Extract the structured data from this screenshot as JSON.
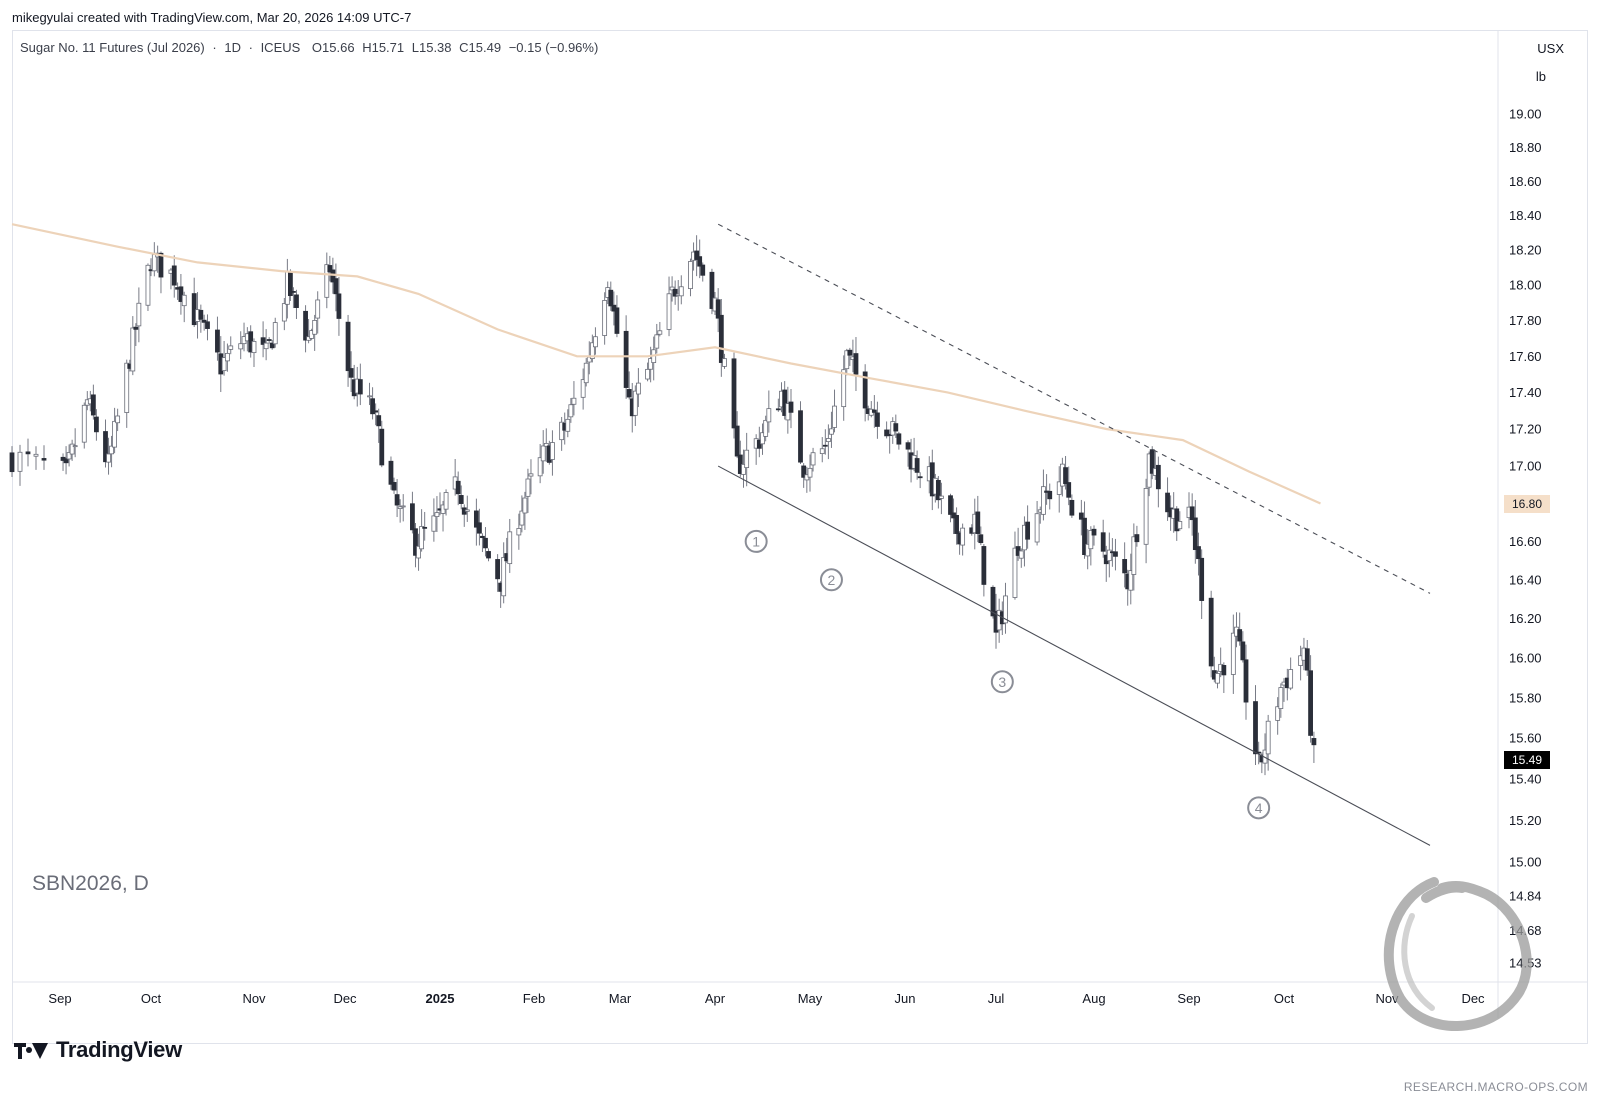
{
  "header": {
    "credit": "mikegyulai created with TradingView.com, Mar 20, 2026 14:09 UTC-7"
  },
  "legend": {
    "title": "Sugar No. 11 Futures (Jul 2026)",
    "interval": "1D",
    "exchange": "ICEUS",
    "open": "O15.66",
    "high": "H15.71",
    "low": "L15.38",
    "close": "C15.49",
    "change": "−0.15 (−0.96%)"
  },
  "axis": {
    "unit_top": "USX",
    "unit_bottom": "lb"
  },
  "symbol_watermark": "SBN2026, D",
  "branding": {
    "logo_text": "TradingView",
    "source_text": "RESEARCH.MACRO-OPS.COM"
  },
  "wave_labels": [
    "1",
    "2",
    "3",
    "4"
  ],
  "colors": {
    "down_candle": "#2a2e39",
    "up_candle": "#ffffff",
    "wick": "#787b86",
    "moving_average": "#edd3b9",
    "ma_label_bg": "#f5dfc9",
    "last_price_bg": "#000000"
  },
  "price_labels": {
    "ma_value": "16.80",
    "last_value": "15.49"
  },
  "chart_data": {
    "type": "candlestick",
    "x_ticks": [
      "Sep",
      "Oct",
      "Nov",
      "Dec",
      "2025",
      "Feb",
      "Mar",
      "Apr",
      "May",
      "Jun",
      "Jul",
      "Aug",
      "Sep",
      "Oct",
      "Nov",
      "Dec"
    ],
    "y_ticks": [
      "19.00",
      "18.80",
      "18.60",
      "18.40",
      "18.20",
      "18.00",
      "17.80",
      "17.60",
      "17.40",
      "17.20",
      "17.00",
      "16.80",
      "16.60",
      "16.40",
      "16.20",
      "16.00",
      "15.80",
      "15.60",
      "15.40",
      "15.20",
      "15.00",
      "14.84",
      "14.68",
      "14.53"
    ],
    "y_range": [
      14.45,
      19.25
    ],
    "grid": false,
    "scale": "log",
    "series": [
      {
        "name": "",
        "kind": "price",
        "path": [
          [
            "2024-08-26",
            17.05
          ],
          [
            "2024-09-03",
            16.95
          ],
          [
            "2024-09-10",
            17.35
          ],
          [
            "2024-09-17",
            17.0
          ],
          [
            "2024-09-24",
            17.6
          ],
          [
            "2024-10-01",
            18.15
          ],
          [
            "2024-10-08",
            18.05
          ],
          [
            "2024-10-15",
            17.8
          ],
          [
            "2024-10-22",
            17.55
          ],
          [
            "2024-10-29",
            17.7
          ],
          [
            "2024-11-05",
            17.6
          ],
          [
            "2024-11-12",
            18.0
          ],
          [
            "2024-11-19",
            17.7
          ],
          [
            "2024-11-26",
            18.1
          ],
          [
            "2024-12-03",
            17.45
          ],
          [
            "2024-12-10",
            17.3
          ],
          [
            "2024-12-17",
            16.8
          ],
          [
            "2024-12-24",
            16.6
          ],
          [
            "2024-12-31",
            16.7
          ],
          [
            "2025-01-07",
            16.9
          ],
          [
            "2025-01-14",
            16.6
          ],
          [
            "2025-01-21",
            16.4
          ],
          [
            "2025-01-28",
            16.8
          ],
          [
            "2025-02-04",
            17.05
          ],
          [
            "2025-02-11",
            17.2
          ],
          [
            "2025-02-18",
            17.55
          ],
          [
            "2025-02-25",
            18.05
          ],
          [
            "2025-03-04",
            17.3
          ],
          [
            "2025-03-11",
            17.55
          ],
          [
            "2025-03-18",
            17.95
          ],
          [
            "2025-03-25",
            18.2
          ],
          [
            "2025-04-01",
            17.9
          ],
          [
            "2025-04-08",
            17.0
          ],
          [
            "2025-04-15",
            17.15
          ],
          [
            "2025-04-22",
            17.4
          ],
          [
            "2025-04-29",
            17.0
          ],
          [
            "2025-05-06",
            17.1
          ],
          [
            "2025-05-13",
            17.6
          ],
          [
            "2025-05-20",
            17.35
          ],
          [
            "2025-05-27",
            17.2
          ],
          [
            "2025-06-03",
            17.05
          ],
          [
            "2025-06-10",
            16.9
          ],
          [
            "2025-06-17",
            16.65
          ],
          [
            "2025-06-24",
            16.7
          ],
          [
            "2025-07-01",
            16.1
          ],
          [
            "2025-07-08",
            16.6
          ],
          [
            "2025-07-15",
            16.8
          ],
          [
            "2025-07-22",
            16.95
          ],
          [
            "2025-07-29",
            16.6
          ],
          [
            "2025-08-05",
            16.55
          ],
          [
            "2025-08-12",
            16.4
          ],
          [
            "2025-08-19",
            17.05
          ],
          [
            "2025-08-26",
            16.75
          ],
          [
            "2025-09-02",
            16.7
          ],
          [
            "2025-09-09",
            15.9
          ],
          [
            "2025-09-16",
            16.1
          ],
          [
            "2025-09-23",
            15.45
          ],
          [
            "2025-09-30",
            15.85
          ],
          [
            "2025-10-07",
            16.05
          ],
          [
            "2025-10-10",
            15.49
          ]
        ]
      },
      {
        "name": "",
        "kind": "moving_average",
        "points": [
          [
            "2024-08-26",
            18.35
          ],
          [
            "2024-09-20",
            18.22
          ],
          [
            "2024-10-15",
            18.13
          ],
          [
            "2024-11-10",
            18.08
          ],
          [
            "2024-12-05",
            18.05
          ],
          [
            "2024-12-25",
            17.95
          ],
          [
            "2025-01-20",
            17.75
          ],
          [
            "2025-02-15",
            17.6
          ],
          [
            "2025-03-10",
            17.6
          ],
          [
            "2025-04-01",
            17.65
          ],
          [
            "2025-04-25",
            17.56
          ],
          [
            "2025-05-20",
            17.48
          ],
          [
            "2025-06-15",
            17.4
          ],
          [
            "2025-07-10",
            17.3
          ],
          [
            "2025-08-05",
            17.2
          ],
          [
            "2025-08-30",
            17.14
          ],
          [
            "2025-09-20",
            16.97
          ],
          [
            "2025-10-12",
            16.8
          ]
        ]
      }
    ],
    "trendlines": [
      {
        "style": "dashed",
        "from": [
          "2025-04-02",
          18.35
        ],
        "to": [
          "2025-11-16",
          16.33
        ]
      },
      {
        "style": "solid",
        "from": [
          "2025-04-02",
          17.0
        ],
        "to": [
          "2025-11-16",
          15.08
        ]
      }
    ],
    "annotations": [
      {
        "text": "1",
        "at": [
          "2025-04-14",
          16.6
        ]
      },
      {
        "text": "2",
        "at": [
          "2025-05-08",
          16.4
        ]
      },
      {
        "text": "3",
        "at": [
          "2025-07-03",
          15.88
        ]
      },
      {
        "text": "4",
        "at": [
          "2025-09-23",
          15.26
        ]
      }
    ]
  }
}
